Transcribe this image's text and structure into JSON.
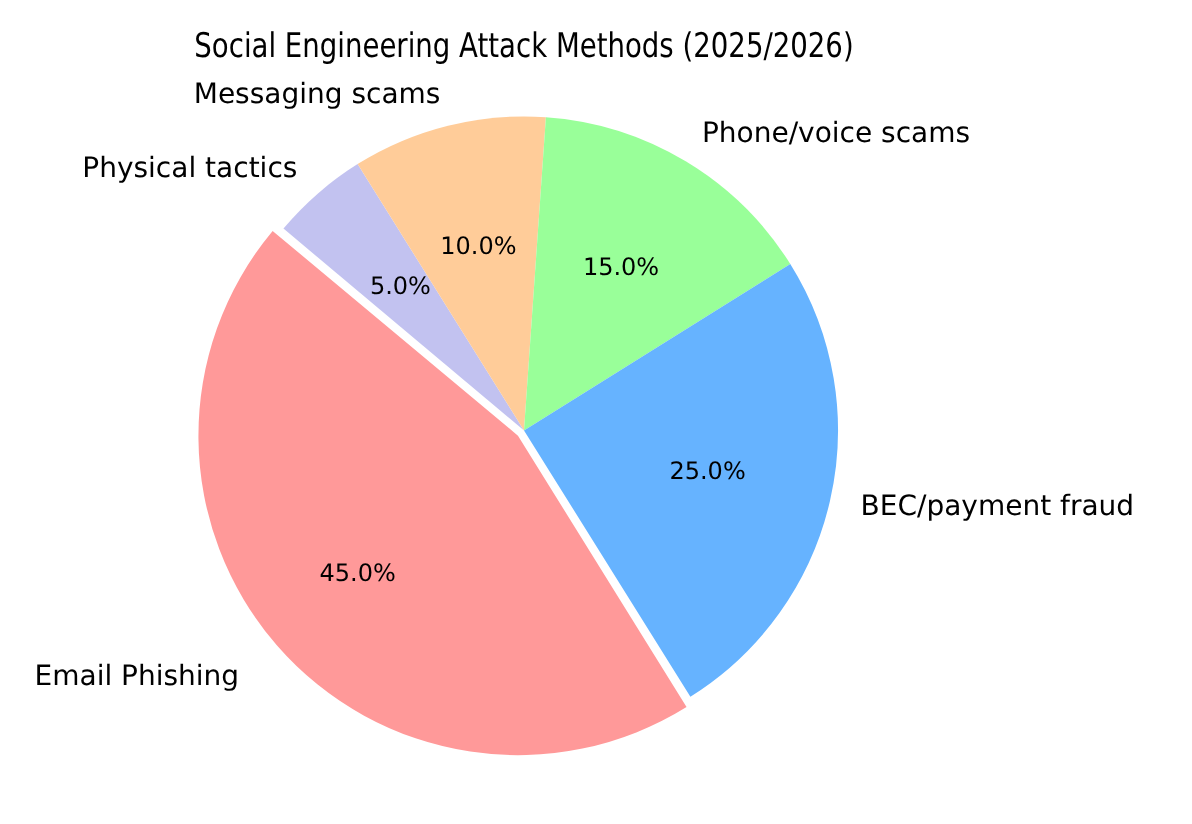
{
  "chart_data": {
    "type": "pie",
    "title": "Social Engineering Attack Methods (2025/2026)",
    "categories": [
      "Physical tactics",
      "Messaging scams",
      "Phone/voice scams",
      "BEC/payment fraud",
      "Email Phishing"
    ],
    "values": [
      5,
      10,
      15,
      25,
      45
    ],
    "colors": [
      "#c2c2f0",
      "#ffcc99",
      "#99ff99",
      "#66b3ff",
      "#ff9999"
    ],
    "value_labels": [
      "5.0%",
      "10.0%",
      "15.0%",
      "25.0%",
      "45.0%"
    ],
    "legend": false
  }
}
